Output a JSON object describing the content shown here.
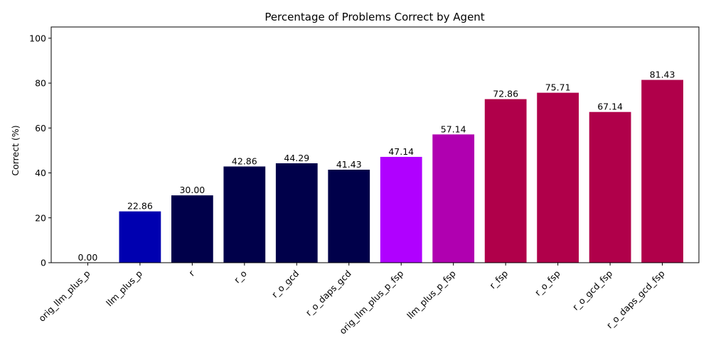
{
  "chart_data": {
    "type": "bar",
    "title": "Percentage of Problems Correct by Agent",
    "xlabel": "",
    "ylabel": "Correct (%)",
    "ylim": [
      0,
      105
    ],
    "yticks": [
      0,
      20,
      40,
      60,
      80,
      100
    ],
    "grid": false,
    "categories": [
      "orig_llm_plus_p",
      "llm_plus_p",
      "r",
      "r_o",
      "r_o_gcd",
      "r_o_daps_gcd",
      "orig_llm_plus_p_fsp",
      "llm_plus_p_fsp",
      "r_fsp",
      "r_o_fsp",
      "r_o_gcd_fsp",
      "r_o_daps_gcd_fsp"
    ],
    "values": [
      0.0,
      22.86,
      30.0,
      42.86,
      44.29,
      41.43,
      47.14,
      57.14,
      72.86,
      75.71,
      67.14,
      81.43
    ],
    "value_labels": [
      "0.00",
      "22.86",
      "30.00",
      "42.86",
      "44.29",
      "41.43",
      "47.14",
      "57.14",
      "72.86",
      "75.71",
      "67.14",
      "81.43"
    ],
    "colors": [
      "#0000b0",
      "#0000b0",
      "#00004a",
      "#00004a",
      "#00004a",
      "#00004a",
      "#b000ff",
      "#b000b0",
      "#b0004a",
      "#b0004a",
      "#b0004a",
      "#b0004a"
    ]
  }
}
